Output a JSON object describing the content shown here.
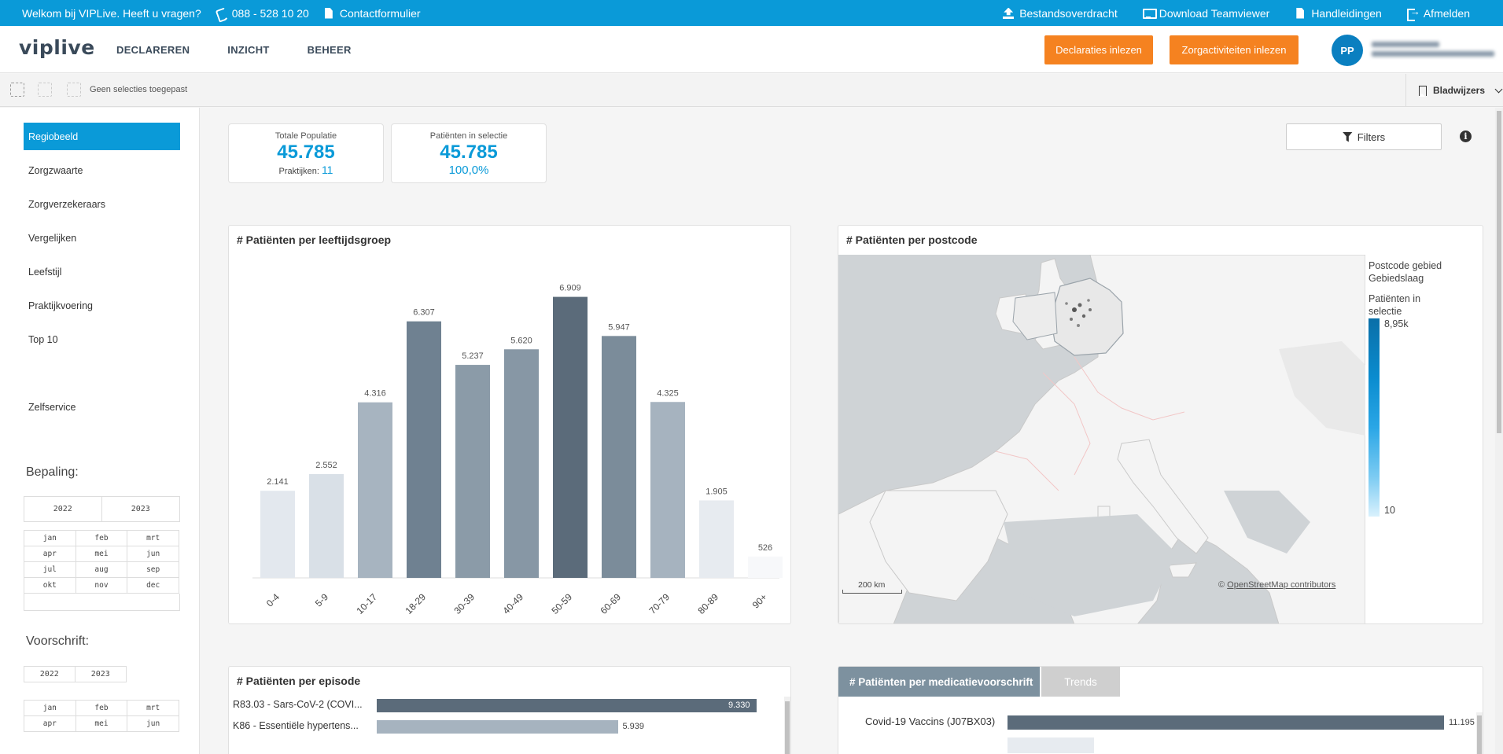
{
  "topbar": {
    "welcome": "Welkom bij VIPLive. Heeft u vragen?",
    "phone": "088 - 528 10 20",
    "contact": "Contactformulier",
    "links": [
      "Bestandsoverdracht",
      "Download Teamviewer",
      "Handleidingen",
      "Afmelden"
    ]
  },
  "header": {
    "logo": "viplive",
    "nav": [
      "DECLAREREN",
      "INZICHT",
      "BEHEER"
    ],
    "btn_declaraties": "Declaraties inlezen",
    "btn_zorgactiviteiten": "Zorgactiviteiten inlezen",
    "avatar": "PP"
  },
  "selbar": {
    "no_selection": "Geen selecties toegepast",
    "bookmarks": "Bladwijzers"
  },
  "sidebar": {
    "items": [
      "Regiobeeld",
      "Zorgzwaarte",
      "Zorgverzekeraars",
      "Vergelijken",
      "Leefstijl",
      "Praktijkvoering",
      "Top 10"
    ],
    "zelfservice": "Zelfservice",
    "bepaling": "Bepaling:",
    "voorschrift": "Voorschrift:",
    "years": [
      "2022",
      "2023"
    ],
    "months": [
      "jan",
      "feb",
      "mrt",
      "apr",
      "mei",
      "jun",
      "jul",
      "aug",
      "sep",
      "okt",
      "nov",
      "dec"
    ],
    "months_short": [
      "jan",
      "feb",
      "mrt",
      "apr",
      "mei",
      "jun"
    ]
  },
  "kpi": {
    "total_label": "Totale Populatie",
    "total_value": "45.785",
    "praktijken_label": "Praktijken:",
    "praktijken_value": "11",
    "sel_label": "Patiënten in selectie",
    "sel_value": "45.785",
    "sel_pct": "100,0%"
  },
  "filters": {
    "label": "Filters",
    "info": "i"
  },
  "age_chart": {
    "title": "# Patiënten per leeftijdsgroep"
  },
  "chart_data": {
    "type": "bar",
    "categories": [
      "0-4",
      "5-9",
      "10-17",
      "18-29",
      "30-39",
      "40-49",
      "50-59",
      "60-69",
      "70-79",
      "80-89",
      "90+"
    ],
    "values": [
      2141,
      2552,
      4316,
      6307,
      5237,
      5620,
      6909,
      5947,
      4325,
      1905,
      526
    ],
    "labels": [
      "2.141",
      "2.552",
      "4.316",
      "6.307",
      "5.237",
      "5.620",
      "6.909",
      "5.947",
      "4.325",
      "1.905",
      "526"
    ],
    "ylim": [
      0,
      7500
    ],
    "colors": [
      "#e3e8ee",
      "#d9e0e7",
      "#a7b4c0",
      "#6f8191",
      "#8b9ba8",
      "#8797a5",
      "#5b6b7a",
      "#7b8c9a",
      "#a6b3bf",
      "#e7ebf0",
      "#f7f8fa"
    ]
  },
  "map": {
    "title": "# Patiënten per postcode",
    "legend_l1": "Postcode gebied",
    "legend_l2": "Gebiedslaag",
    "legend_l3": "Patiënten in",
    "legend_l4": "selectie",
    "legend_max": "8,95k",
    "legend_min": "10",
    "scale": "200 km",
    "attribution_prefix": "©",
    "attribution": "OpenStreetMap contributors"
  },
  "episodes": {
    "title": "# Patiënten per episode",
    "rows": [
      {
        "label": "R83.03 - Sars-CoV-2 (COVI...",
        "value": 9330,
        "text": "9.330"
      },
      {
        "label": "K86 - Essentiële hypertens...",
        "value": 5939,
        "text": "5.939"
      }
    ]
  },
  "medication": {
    "tab_active": "# Patiënten per medicatievoorschrift",
    "tab_trends": "Trends",
    "rows": [
      {
        "label": "Covid-19 Vaccins (J07BX03)",
        "value": 11195,
        "text": "11.195"
      }
    ]
  }
}
